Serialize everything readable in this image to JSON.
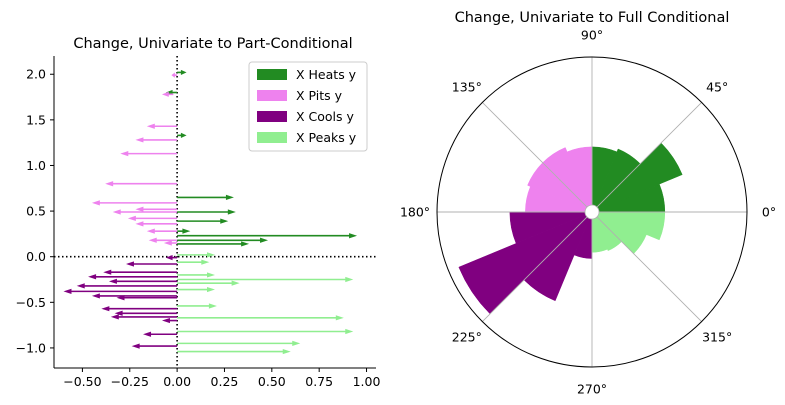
{
  "colors": {
    "heats": "#228b22",
    "pits": "#ee82ee",
    "cools": "#800080",
    "peaks": "#90ee90",
    "axis": "#000000",
    "grid": "#b0b0b0"
  },
  "chart_data": [
    {
      "type": "quiver",
      "title": "Change, Univariate to Part-Conditional",
      "xlabel": "",
      "ylabel": "",
      "xlim": [
        -0.65,
        1.05
      ],
      "ylim": [
        -1.22,
        2.2
      ],
      "xticks": [
        -0.5,
        -0.25,
        0.0,
        0.25,
        0.5,
        0.75,
        1.0
      ],
      "xtick_labels": [
        "−0.50",
        "−0.25",
        "0.00",
        "0.25",
        "0.50",
        "0.75",
        "1.00"
      ],
      "yticks": [
        -1.0,
        -0.5,
        0.0,
        0.5,
        1.0,
        1.5,
        2.0
      ],
      "ytick_labels": [
        "−1.0",
        "−0.5",
        "0.0",
        "0.5",
        "1.0",
        "1.5",
        "2.0"
      ],
      "reference_lines": {
        "x": 0.0,
        "y": 0.0,
        "style": "dotted"
      },
      "legend": {
        "placement": "upper right",
        "entries": [
          {
            "label": "X Heats y",
            "color_key": "heats"
          },
          {
            "label": "X Pits y",
            "color_key": "pits"
          },
          {
            "label": "X Cools y",
            "color_key": "cools"
          },
          {
            "label": "X Peaks y",
            "color_key": "peaks"
          }
        ]
      },
      "arrows": [
        {
          "group": "heats",
          "x0": 0.0,
          "x1": 0.05,
          "y": 2.02
        },
        {
          "group": "pits",
          "x0": 0.0,
          "x1": -0.03,
          "y": 1.99
        },
        {
          "group": "heats",
          "x0": 0.0,
          "x1": -0.06,
          "y": 1.8
        },
        {
          "group": "pits",
          "x0": -0.02,
          "x1": -0.08,
          "y": 1.78
        },
        {
          "group": "pits",
          "x0": 0.0,
          "x1": -0.16,
          "y": 1.43
        },
        {
          "group": "heats",
          "x0": 0.0,
          "x1": 0.05,
          "y": 1.33
        },
        {
          "group": "pits",
          "x0": 0.0,
          "x1": -0.22,
          "y": 1.28
        },
        {
          "group": "pits",
          "x0": 0.0,
          "x1": -0.3,
          "y": 1.13
        },
        {
          "group": "pits",
          "x0": 0.0,
          "x1": -0.38,
          "y": 0.8
        },
        {
          "group": "heats",
          "x0": 0.0,
          "x1": 0.3,
          "y": 0.65
        },
        {
          "group": "pits",
          "x0": 0.0,
          "x1": -0.45,
          "y": 0.59
        },
        {
          "group": "pits",
          "x0": 0.0,
          "x1": -0.34,
          "y": 0.49
        },
        {
          "group": "pits",
          "x0": 0.0,
          "x1": -0.22,
          "y": 0.52
        },
        {
          "group": "heats",
          "x0": 0.0,
          "x1": 0.31,
          "y": 0.49
        },
        {
          "group": "pits",
          "x0": 0.0,
          "x1": -0.26,
          "y": 0.42
        },
        {
          "group": "heats",
          "x0": 0.0,
          "x1": 0.27,
          "y": 0.39
        },
        {
          "group": "pits",
          "x0": 0.0,
          "x1": -0.22,
          "y": 0.36
        },
        {
          "group": "heats",
          "x0": 0.0,
          "x1": 0.07,
          "y": 0.28
        },
        {
          "group": "pits",
          "x0": 0.0,
          "x1": -0.16,
          "y": 0.28
        },
        {
          "group": "heats",
          "x0": 0.0,
          "x1": 0.95,
          "y": 0.23
        },
        {
          "group": "pits",
          "x0": 0.0,
          "x1": -0.15,
          "y": 0.18
        },
        {
          "group": "heats",
          "x0": 0.0,
          "x1": 0.48,
          "y": 0.18
        },
        {
          "group": "pits",
          "x0": 0.0,
          "x1": -0.07,
          "y": 0.15
        },
        {
          "group": "heats",
          "x0": 0.0,
          "x1": 0.38,
          "y": 0.14
        },
        {
          "group": "peaks",
          "x0": 0.0,
          "x1": 0.2,
          "y": 0.02
        },
        {
          "group": "cools",
          "x0": 0.0,
          "x1": -0.06,
          "y": -0.01
        },
        {
          "group": "peaks",
          "x0": 0.0,
          "x1": 0.17,
          "y": -0.06
        },
        {
          "group": "cools",
          "x0": 0.0,
          "x1": -0.27,
          "y": -0.08
        },
        {
          "group": "cools",
          "x0": 0.0,
          "x1": -0.39,
          "y": -0.17
        },
        {
          "group": "peaks",
          "x0": 0.0,
          "x1": 0.2,
          "y": -0.2
        },
        {
          "group": "cools",
          "x0": 0.0,
          "x1": -0.47,
          "y": -0.22
        },
        {
          "group": "peaks",
          "x0": 0.0,
          "x1": 0.93,
          "y": -0.25
        },
        {
          "group": "cools",
          "x0": 0.0,
          "x1": -0.36,
          "y": -0.27
        },
        {
          "group": "peaks",
          "x0": 0.0,
          "x1": 0.33,
          "y": -0.29
        },
        {
          "group": "cools",
          "x0": 0.0,
          "x1": -0.53,
          "y": -0.32
        },
        {
          "group": "peaks",
          "x0": 0.0,
          "x1": 0.2,
          "y": -0.36
        },
        {
          "group": "cools",
          "x0": 0.0,
          "x1": -0.6,
          "y": -0.38
        },
        {
          "group": "cools",
          "x0": 0.0,
          "x1": -0.45,
          "y": -0.43
        },
        {
          "group": "cools",
          "x0": 0.0,
          "x1": -0.32,
          "y": -0.45
        },
        {
          "group": "peaks",
          "x0": 0.0,
          "x1": 0.21,
          "y": -0.54
        },
        {
          "group": "cools",
          "x0": 0.0,
          "x1": -0.4,
          "y": -0.57
        },
        {
          "group": "cools",
          "x0": 0.0,
          "x1": -0.33,
          "y": -0.62
        },
        {
          "group": "cools",
          "x0": 0.0,
          "x1": -0.35,
          "y": -0.66
        },
        {
          "group": "peaks",
          "x0": 0.0,
          "x1": 0.88,
          "y": -0.67
        },
        {
          "group": "cools",
          "x0": 0.0,
          "x1": -0.08,
          "y": -0.7
        },
        {
          "group": "peaks",
          "x0": 0.0,
          "x1": 0.93,
          "y": -0.82
        },
        {
          "group": "cools",
          "x0": 0.0,
          "x1": -0.18,
          "y": -0.85
        },
        {
          "group": "peaks",
          "x0": 0.0,
          "x1": 0.65,
          "y": -0.95
        },
        {
          "group": "cools",
          "x0": 0.0,
          "x1": -0.24,
          "y": -0.98
        },
        {
          "group": "peaks",
          "x0": 0.0,
          "x1": 0.6,
          "y": -1.04
        }
      ]
    },
    {
      "type": "polar-bar",
      "title": "Change, Univariate to Full Conditional",
      "angle_labels": [
        {
          "deg": 0,
          "label": "0°"
        },
        {
          "deg": 45,
          "label": "45°"
        },
        {
          "deg": 90,
          "label": "90°"
        },
        {
          "deg": 135,
          "label": "135°"
        },
        {
          "deg": 180,
          "label": "180°"
        },
        {
          "deg": 225,
          "label": "225°"
        },
        {
          "deg": 270,
          "label": "270°"
        },
        {
          "deg": 315,
          "label": "315°"
        }
      ],
      "r_max": 1.0,
      "bin_width_deg": 22.5,
      "bars": [
        {
          "theta_start": 0,
          "theta_end": 22.5,
          "r": 0.47,
          "color_key": "heats"
        },
        {
          "theta_start": 22.5,
          "theta_end": 45,
          "r": 0.63,
          "color_key": "heats"
        },
        {
          "theta_start": 45,
          "theta_end": 67.5,
          "r": 0.44,
          "color_key": "heats"
        },
        {
          "theta_start": 67.5,
          "theta_end": 90,
          "r": 0.42,
          "color_key": "heats"
        },
        {
          "theta_start": 90,
          "theta_end": 112.5,
          "r": 0.42,
          "color_key": "pits"
        },
        {
          "theta_start": 112.5,
          "theta_end": 135,
          "r": 0.45,
          "color_key": "pits"
        },
        {
          "theta_start": 135,
          "theta_end": 157.5,
          "r": 0.45,
          "color_key": "pits"
        },
        {
          "theta_start": 157.5,
          "theta_end": 180,
          "r": 0.43,
          "color_key": "pits"
        },
        {
          "theta_start": 180,
          "theta_end": 202.5,
          "r": 0.53,
          "color_key": "cools"
        },
        {
          "theta_start": 202.5,
          "theta_end": 225,
          "r": 0.93,
          "color_key": "cools"
        },
        {
          "theta_start": 225,
          "theta_end": 247.5,
          "r": 0.62,
          "color_key": "cools"
        },
        {
          "theta_start": 247.5,
          "theta_end": 270,
          "r": 0.3,
          "color_key": "cools"
        },
        {
          "theta_start": 270,
          "theta_end": 292.5,
          "r": 0.26,
          "color_key": "peaks"
        },
        {
          "theta_start": 292.5,
          "theta_end": 315,
          "r": 0.27,
          "color_key": "peaks"
        },
        {
          "theta_start": 315,
          "theta_end": 337.5,
          "r": 0.38,
          "color_key": "peaks"
        },
        {
          "theta_start": 337.5,
          "theta_end": 360,
          "r": 0.47,
          "color_key": "peaks"
        }
      ],
      "grid": true
    }
  ]
}
